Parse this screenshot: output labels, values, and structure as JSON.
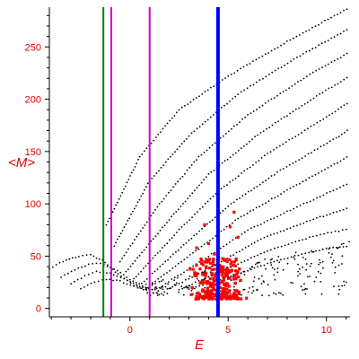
{
  "chart_data": {
    "type": "scatter",
    "xlabel": "E",
    "ylabel": "<M>",
    "xlim": [
      -4.1,
      11.2
    ],
    "ylim": [
      -8,
      288
    ],
    "x_ticks": [
      {
        "value": 0,
        "label": "0"
      },
      {
        "value": 5,
        "label": "5"
      },
      {
        "value": 10,
        "label": "10"
      }
    ],
    "y_ticks": [
      {
        "value": 0,
        "label": "0"
      },
      {
        "value": 50,
        "label": "50"
      },
      {
        "value": 100,
        "label": "100"
      },
      {
        "value": 150,
        "label": "150"
      },
      {
        "value": 200,
        "label": "200"
      },
      {
        "value": 250,
        "label": "250"
      }
    ],
    "grid": false,
    "vertical_lines": [
      {
        "x": -1.35,
        "color": "#008000"
      },
      {
        "x": -0.95,
        "color": "#d000d0"
      },
      {
        "x": 1.0,
        "color": "#d000d0"
      },
      {
        "x": 4.48,
        "color": "#0000ff"
      }
    ],
    "branches": [
      {
        "x": [
          -1.2,
          0.5,
          2.5,
          5.0,
          8.0,
          11.2
        ],
        "y": [
          80,
          145,
          190,
          222,
          255,
          288
        ]
      },
      {
        "x": [
          -0.8,
          1.0,
          3.0,
          5.5,
          8.5,
          11.2
        ],
        "y": [
          60,
          122,
          165,
          205,
          240,
          268
        ]
      },
      {
        "x": [
          -0.5,
          1.5,
          3.5,
          6.0,
          9.0,
          11.2
        ],
        "y": [
          45,
          100,
          145,
          185,
          222,
          245
        ]
      },
      {
        "x": [
          -0.2,
          2.0,
          4.0,
          6.5,
          9.5,
          11.2
        ],
        "y": [
          35,
          85,
          128,
          166,
          203,
          222
        ]
      },
      {
        "x": [
          0.2,
          2.5,
          4.5,
          7.0,
          10.0,
          11.2
        ],
        "y": [
          28,
          75,
          112,
          148,
          183,
          198
        ]
      },
      {
        "x": [
          0.6,
          3.0,
          5.0,
          7.5,
          10.5,
          11.2
        ],
        "y": [
          24,
          65,
          98,
          130,
          163,
          172
        ]
      },
      {
        "x": [
          1.0,
          3.5,
          5.5,
          8.0,
          11.2
        ],
        "y": [
          22,
          57,
          86,
          113,
          146
        ]
      },
      {
        "x": [
          1.5,
          4.0,
          6.0,
          8.5,
          11.2
        ],
        "y": [
          20,
          50,
          75,
          97,
          120
        ]
      },
      {
        "x": [
          2.0,
          4.5,
          6.5,
          9.0,
          11.2
        ],
        "y": [
          19,
          43,
          65,
          83,
          97
        ]
      },
      {
        "x": [
          2.5,
          5.0,
          7.0,
          9.5,
          11.2
        ],
        "y": [
          18,
          38,
          55,
          70,
          76
        ]
      },
      {
        "x": [
          3.0,
          5.5,
          7.5,
          10.0,
          11.2
        ],
        "y": [
          18,
          33,
          46,
          57,
          60
        ]
      },
      {
        "x": [
          -4.1,
          -3.4,
          -2.6,
          -2.0,
          -1.4,
          -0.6,
          0.2,
          1.0,
          1.8
        ],
        "y": [
          38,
          45,
          50,
          51,
          46,
          33,
          22,
          16,
          13
        ]
      },
      {
        "x": [
          -3.5,
          -2.8,
          -2.1,
          -1.5,
          -0.8,
          0.0,
          0.8,
          1.6
        ],
        "y": [
          30,
          37,
          42,
          43,
          38,
          28,
          20,
          16
        ]
      },
      {
        "x": [
          -3.0,
          -2.3,
          -1.7,
          -1.0,
          -0.3,
          0.5,
          1.3
        ],
        "y": [
          24,
          31,
          35,
          34,
          28,
          21,
          17
        ]
      },
      {
        "x": [
          -2.5,
          -1.8,
          -1.2,
          -0.5,
          0.2,
          1.0
        ],
        "y": [
          19,
          25,
          28,
          26,
          21,
          18
        ]
      }
    ],
    "red_cluster": {
      "x_range": [
        2.9,
        6.0
      ],
      "y_range": [
        9,
        48
      ],
      "center": [
        4.6,
        24
      ],
      "outliers": [
        [
          3.4,
          58
        ],
        [
          4.0,
          62
        ],
        [
          5.1,
          78
        ],
        [
          5.5,
          68
        ],
        [
          3.8,
          80
        ],
        [
          5.3,
          92
        ],
        [
          4.3,
          52
        ]
      ]
    }
  }
}
